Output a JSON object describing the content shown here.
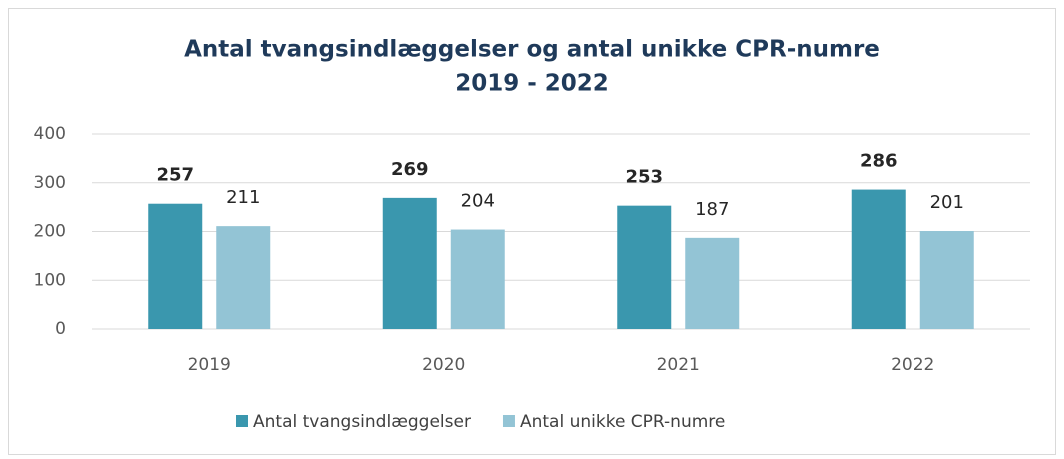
{
  "chart_data": {
    "type": "bar",
    "title": "Antal tvangsindlæggelser og antal unikke CPR-numre",
    "subtitle": "2019 - 2022",
    "categories": [
      "2019",
      "2020",
      "2021",
      "2022"
    ],
    "series": [
      {
        "name": "Antal tvangsindlæggelser",
        "color": "#3a97ae",
        "values": [
          257,
          269,
          253,
          286
        ]
      },
      {
        "name": "Antal unikke CPR-numre",
        "color": "#93c4d5",
        "values": [
          211,
          204,
          187,
          201
        ]
      }
    ],
    "ylim": [
      0,
      400
    ],
    "yticks": [
      0,
      100,
      200,
      300,
      400
    ],
    "grid": true,
    "legend": "bottom"
  }
}
